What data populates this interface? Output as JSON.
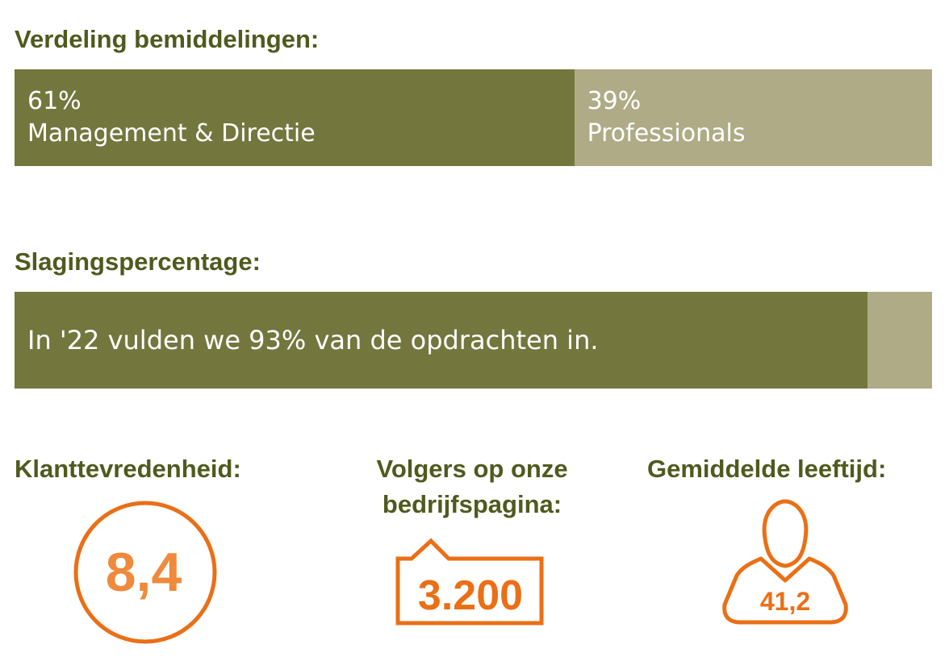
{
  "section_distribution": {
    "heading": "Verdeling bemiddelingen:",
    "segments": [
      {
        "percent": 61,
        "percent_label": "61%",
        "label": "Management & Directie"
      },
      {
        "percent": 39,
        "percent_label": "39%",
        "label": "Professionals"
      }
    ]
  },
  "section_success": {
    "heading": "Slagingspercentage:",
    "fill_percent": 93,
    "text": "In '22 vulden we 93% van de opdrachten in."
  },
  "kpis": {
    "satisfaction": {
      "title": "Klanttevredenheid:",
      "value": "8,4",
      "icon": "circle-badge-icon"
    },
    "followers": {
      "title_line1": "Volgers op onze",
      "title_line2": "bedrijfspagina:",
      "value": "3.200",
      "icon": "speech-bubble-icon"
    },
    "age": {
      "title": "Gemiddelde leeftijd:",
      "value": "41,2",
      "icon": "person-icon"
    }
  },
  "colors": {
    "heading": "#4f5a1e",
    "bar_dark": "#73773e",
    "bar_light": "#aeab86",
    "accent_orange": "#ea6f16",
    "accent_orange_light": "#ef8a3c"
  },
  "chart_data": [
    {
      "type": "bar",
      "orientation": "horizontal-stacked",
      "title": "Verdeling bemiddelingen:",
      "categories": [
        "Management & Directie",
        "Professionals"
      ],
      "values": [
        61,
        39
      ],
      "unit": "%"
    },
    {
      "type": "bar",
      "orientation": "horizontal-progress",
      "title": "Slagingspercentage:",
      "values": [
        93
      ],
      "range": [
        0,
        100
      ],
      "unit": "%"
    }
  ]
}
